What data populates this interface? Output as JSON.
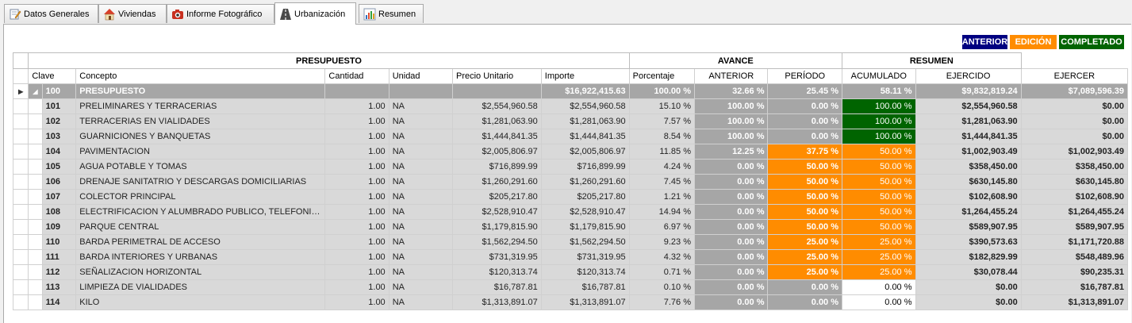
{
  "tabs": [
    {
      "label": "Datos Generales",
      "icon": "edit-document-icon"
    },
    {
      "label": "Viviendas",
      "icon": "house-icon"
    },
    {
      "label": "Informe Fotográfico",
      "icon": "camera-icon"
    },
    {
      "label": "Urbanización",
      "icon": "road-icon"
    },
    {
      "label": "Resumen",
      "icon": "bar-chart-icon"
    }
  ],
  "legend": {
    "anterior": "ANTERIOR",
    "edicion": "EDICIÓN",
    "completado": "COMPLETADO",
    "colors": {
      "anterior": "#000080",
      "edicion": "#ff8c00",
      "completado": "#006400"
    }
  },
  "grid": {
    "bands": {
      "presupuesto": "PRESUPUESTO",
      "avance": "AVANCE",
      "resumen": "RESUMEN"
    },
    "columns": [
      "Clave",
      "Concepto",
      "Cantidad",
      "Unidad",
      "Precio Unitario",
      "Importe",
      "Porcentaje",
      "ANTERIOR",
      "PERÍODO",
      "ACUMULADO",
      "EJERCIDO",
      "EJERCER"
    ],
    "parent": {
      "clave": "100",
      "concepto": "PRESUPUESTO",
      "cantidad": "",
      "unidad": "",
      "precio": "",
      "importe": "$16,922,415.63",
      "porcentaje": "100.00 %",
      "anterior": "32.66 %",
      "periodo": "25.45 %",
      "acumulado": "58.11 %",
      "ejercido": "$9,832,819.24",
      "ejercer": "$7,089,596.39"
    },
    "rows": [
      {
        "clave": "101",
        "concepto": "PRELIMINARES Y TERRACERIAS",
        "cantidad": "1.00",
        "unidad": "NA",
        "precio": "$2,554,960.58",
        "importe": "$2,554,960.58",
        "porcentaje": "15.10 %",
        "anterior": "100.00 %",
        "periodo": "0.00 %",
        "acumulado": "100.00 %",
        "ejercido": "$2,554,960.58",
        "ejercer": "$0.00",
        "status": "completado"
      },
      {
        "clave": "102",
        "concepto": "TERRACERIAS EN VIALIDADES",
        "cantidad": "1.00",
        "unidad": "NA",
        "precio": "$1,281,063.90",
        "importe": "$1,281,063.90",
        "porcentaje": "7.57 %",
        "anterior": "100.00 %",
        "periodo": "0.00 %",
        "acumulado": "100.00 %",
        "ejercido": "$1,281,063.90",
        "ejercer": "$0.00",
        "status": "completado"
      },
      {
        "clave": "103",
        "concepto": "GUARNICIONES Y BANQUETAS",
        "cantidad": "1.00",
        "unidad": "NA",
        "precio": "$1,444,841.35",
        "importe": "$1,444,841.35",
        "porcentaje": "8.54 %",
        "anterior": "100.00 %",
        "periodo": "0.00 %",
        "acumulado": "100.00 %",
        "ejercido": "$1,444,841.35",
        "ejercer": "$0.00",
        "status": "completado"
      },
      {
        "clave": "104",
        "concepto": "PAVIMENTACION",
        "cantidad": "1.00",
        "unidad": "NA",
        "precio": "$2,005,806.97",
        "importe": "$2,005,806.97",
        "porcentaje": "11.85 %",
        "anterior": "12.25 %",
        "periodo": "37.75 %",
        "acumulado": "50.00 %",
        "ejercido": "$1,002,903.49",
        "ejercer": "$1,002,903.49",
        "status": "edicion"
      },
      {
        "clave": "105",
        "concepto": "AGUA POTABLE Y TOMAS",
        "cantidad": "1.00",
        "unidad": "NA",
        "precio": "$716,899.99",
        "importe": "$716,899.99",
        "porcentaje": "4.24 %",
        "anterior": "0.00 %",
        "periodo": "50.00 %",
        "acumulado": "50.00 %",
        "ejercido": "$358,450.00",
        "ejercer": "$358,450.00",
        "status": "edicion"
      },
      {
        "clave": "106",
        "concepto": "DRENAJE SANITATRIO Y DESCARGAS DOMICILIARIAS",
        "cantidad": "1.00",
        "unidad": "NA",
        "precio": "$1,260,291.60",
        "importe": "$1,260,291.60",
        "porcentaje": "7.45 %",
        "anterior": "0.00 %",
        "periodo": "50.00 %",
        "acumulado": "50.00 %",
        "ejercido": "$630,145.80",
        "ejercer": "$630,145.80",
        "status": "edicion"
      },
      {
        "clave": "107",
        "concepto": "COLECTOR PRINCIPAL",
        "cantidad": "1.00",
        "unidad": "NA",
        "precio": "$205,217.80",
        "importe": "$205,217.80",
        "porcentaje": "1.21 %",
        "anterior": "0.00 %",
        "periodo": "50.00 %",
        "acumulado": "50.00 %",
        "ejercido": "$102,608.90",
        "ejercer": "$102,608.90",
        "status": "edicion"
      },
      {
        "clave": "108",
        "concepto": "ELECTRIFICACION Y ALUMBRADO PUBLICO, TELEFONIA Y ...",
        "cantidad": "1.00",
        "unidad": "NA",
        "precio": "$2,528,910.47",
        "importe": "$2,528,910.47",
        "porcentaje": "14.94 %",
        "anterior": "0.00 %",
        "periodo": "50.00 %",
        "acumulado": "50.00 %",
        "ejercido": "$1,264,455.24",
        "ejercer": "$1,264,455.24",
        "status": "edicion"
      },
      {
        "clave": "109",
        "concepto": "PARQUE CENTRAL",
        "cantidad": "1.00",
        "unidad": "NA",
        "precio": "$1,179,815.90",
        "importe": "$1,179,815.90",
        "porcentaje": "6.97 %",
        "anterior": "0.00 %",
        "periodo": "50.00 %",
        "acumulado": "50.00 %",
        "ejercido": "$589,907.95",
        "ejercer": "$589,907.95",
        "status": "edicion"
      },
      {
        "clave": "110",
        "concepto": "BARDA PERIMETRAL DE ACCESO",
        "cantidad": "1.00",
        "unidad": "NA",
        "precio": "$1,562,294.50",
        "importe": "$1,562,294.50",
        "porcentaje": "9.23 %",
        "anterior": "0.00 %",
        "periodo": "25.00 %",
        "acumulado": "25.00 %",
        "ejercido": "$390,573.63",
        "ejercer": "$1,171,720.88",
        "status": "edicion"
      },
      {
        "clave": "111",
        "concepto": "BARDA INTERIORES Y URBANAS",
        "cantidad": "1.00",
        "unidad": "NA",
        "precio": "$731,319.95",
        "importe": "$731,319.95",
        "porcentaje": "4.32 %",
        "anterior": "0.00 %",
        "periodo": "25.00 %",
        "acumulado": "25.00 %",
        "ejercido": "$182,829.99",
        "ejercer": "$548,489.96",
        "status": "edicion"
      },
      {
        "clave": "112",
        "concepto": "SEÑALIZACION HORIZONTAL",
        "cantidad": "1.00",
        "unidad": "NA",
        "precio": "$120,313.74",
        "importe": "$120,313.74",
        "porcentaje": "0.71 %",
        "anterior": "0.00 %",
        "periodo": "25.00 %",
        "acumulado": "25.00 %",
        "ejercido": "$30,078.44",
        "ejercer": "$90,235.31",
        "status": "edicion"
      },
      {
        "clave": "113",
        "concepto": "LIMPIEZA DE VIALIDADES",
        "cantidad": "1.00",
        "unidad": "NA",
        "precio": "$16,787.81",
        "importe": "$16,787.81",
        "porcentaje": "0.10 %",
        "anterior": "0.00 %",
        "periodo": "0.00 %",
        "acumulado": "0.00 %",
        "ejercido": "$0.00",
        "ejercer": "$16,787.81",
        "status": "none"
      },
      {
        "clave": "114",
        "concepto": "KILO",
        "cantidad": "1.00",
        "unidad": "NA",
        "precio": "$1,313,891.07",
        "importe": "$1,313,891.07",
        "porcentaje": "7.76 %",
        "anterior": "0.00 %",
        "periodo": "0.00 %",
        "acumulado": "0.00 %",
        "ejercido": "$0.00",
        "ejercer": "$1,313,891.07",
        "status": "none"
      }
    ]
  }
}
